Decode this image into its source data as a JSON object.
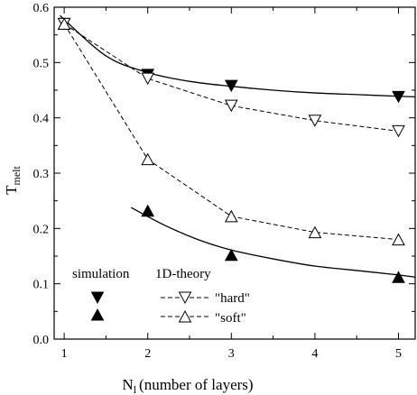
{
  "chart_data": {
    "type": "line",
    "xlabel_main": "N",
    "xlabel_sub": "l",
    "xlabel_rest": "(number of layers)",
    "ylabel_main": "T",
    "ylabel_sub": "melt",
    "xlim": [
      0.88,
      5.2
    ],
    "ylim": [
      0.0,
      0.6
    ],
    "xticks": [
      1,
      2,
      3,
      4,
      5
    ],
    "yticks": [
      0.0,
      0.1,
      0.2,
      0.3,
      0.4,
      0.5,
      0.6
    ],
    "xtick_labels": [
      "1",
      "2",
      "3",
      "4",
      "5"
    ],
    "ytick_labels": [
      "0.0",
      "0.1",
      "0.2",
      "0.3",
      "0.4",
      "0.5",
      "0.6"
    ],
    "series": [
      {
        "name": "simulation hard",
        "marker": "triangle-down-filled",
        "line": "none",
        "x": [
          1,
          2,
          3,
          5
        ],
        "y": [
          0.57,
          0.478,
          0.458,
          0.438
        ]
      },
      {
        "name": "simulation soft",
        "marker": "triangle-up-filled",
        "line": "none",
        "x": [
          1,
          2,
          3,
          5
        ],
        "y": [
          0.57,
          0.232,
          0.152,
          0.112
        ]
      },
      {
        "name": "\"hard\"",
        "marker": "triangle-down-open",
        "line": "dashed",
        "x": [
          1,
          2,
          3,
          4,
          5
        ],
        "y": [
          0.57,
          0.471,
          0.422,
          0.395,
          0.376
        ]
      },
      {
        "name": "\"soft\"",
        "marker": "triangle-up-open",
        "line": "dashed",
        "x": [
          1,
          2,
          3,
          4,
          5
        ],
        "y": [
          0.57,
          0.325,
          0.222,
          0.193,
          0.18
        ]
      }
    ],
    "fits": [
      {
        "line": "solid",
        "x": [
          0.95,
          1.5,
          2,
          2.5,
          3,
          3.5,
          4,
          4.5,
          5,
          5.2
        ],
        "y": [
          0.585,
          0.512,
          0.482,
          0.466,
          0.457,
          0.45,
          0.445,
          0.442,
          0.439,
          0.438
        ]
      },
      {
        "line": "solid",
        "x": [
          1.8,
          2.2,
          2.6,
          3,
          3.5,
          4,
          4.5,
          5,
          5.2
        ],
        "y": [
          0.238,
          0.206,
          0.18,
          0.161,
          0.145,
          0.132,
          0.124,
          0.116,
          0.112
        ]
      }
    ],
    "legend": {
      "simulation_title": "simulation",
      "theory_title": "1D-theory",
      "hard_label": "\"hard\"",
      "soft_label": "\"soft\""
    }
  }
}
